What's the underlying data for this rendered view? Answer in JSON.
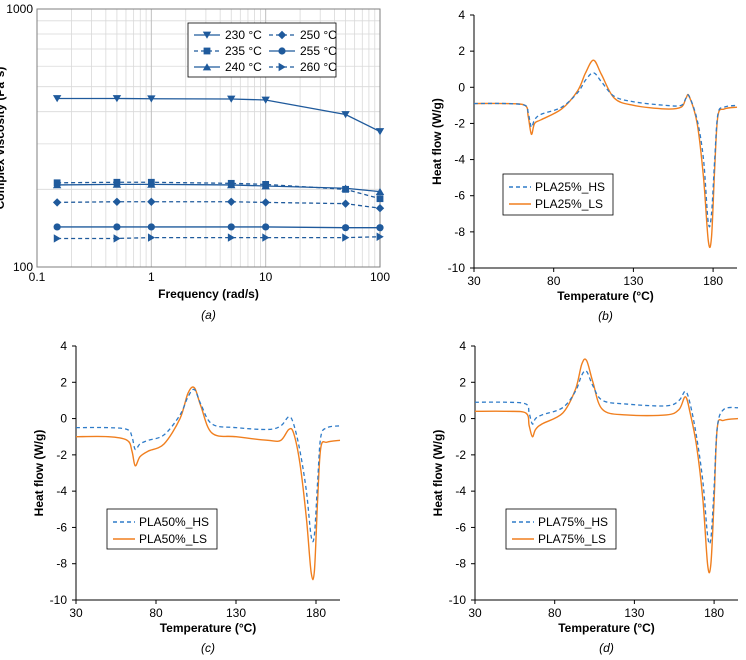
{
  "colors": {
    "viscosity": "#1f5a9c",
    "hs": "#2e7bc8",
    "ls": "#f07f1f",
    "axis": "#000000",
    "grid": "#d9d9d9"
  },
  "chart_data": [
    {
      "type": "line",
      "panel_label": "(a)",
      "xlabel": "Frequency (rad/s)",
      "ylabel": "Complex viscosity (Pa*s)",
      "xscale": "log",
      "yscale": "log",
      "xlim": [
        0.1,
        100
      ],
      "ylim": [
        100,
        1000
      ],
      "xticks": [
        0.1,
        1,
        10,
        100
      ],
      "xtick_labels": [
        "0.1",
        "1",
        "10",
        "100"
      ],
      "yticks": [
        100,
        1000
      ],
      "ytick_labels": [
        "100",
        "1000"
      ],
      "legend": "top-right, two columns",
      "series": [
        {
          "name": "230 °C",
          "marker": "triangle-down",
          "dash": "solid",
          "x": [
            0.15,
            0.5,
            1,
            5,
            10,
            50,
            100
          ],
          "y": [
            450,
            450,
            449,
            448,
            444,
            390,
            335
          ]
        },
        {
          "name": "235 °C",
          "marker": "square",
          "dash": "dashed",
          "x": [
            0.15,
            0.5,
            1,
            5,
            10,
            50,
            100
          ],
          "y": [
            212,
            213,
            213,
            211,
            209,
            200,
            184
          ]
        },
        {
          "name": "240 °C",
          "marker": "triangle-up",
          "dash": "solid",
          "x": [
            0.15,
            0.5,
            1,
            5,
            10,
            50,
            100
          ],
          "y": [
            208,
            209,
            209,
            208,
            206,
            202,
            196
          ]
        },
        {
          "name": "250 °C",
          "marker": "diamond",
          "dash": "dashed",
          "x": [
            0.15,
            0.5,
            1,
            5,
            10,
            50,
            100
          ],
          "y": [
            178,
            179,
            179,
            179,
            178,
            176,
            169
          ]
        },
        {
          "name": "255 °C",
          "marker": "circle",
          "dash": "solid",
          "x": [
            0.15,
            0.5,
            1,
            5,
            10,
            50,
            100
          ],
          "y": [
            143,
            143,
            143,
            143,
            143,
            142,
            142
          ]
        },
        {
          "name": "260 °C",
          "marker": "triangle-right",
          "dash": "dashed",
          "x": [
            0.15,
            0.5,
            1,
            5,
            10,
            50,
            100
          ],
          "y": [
            129,
            129,
            130,
            130,
            130,
            130,
            131
          ]
        }
      ]
    },
    {
      "type": "line",
      "panel_label": "(b)",
      "xlabel": "Temperature (°C)",
      "ylabel": "Heat flow (W/g)",
      "xlim": [
        30,
        195
      ],
      "ylim": [
        -10,
        4
      ],
      "xticks": [
        30,
        80,
        130,
        180
      ],
      "yticks": [
        -10,
        -8,
        -6,
        -4,
        -2,
        0,
        2,
        4
      ],
      "legend": "lower-left",
      "series": [
        {
          "name": "PLA25%_HS",
          "dash": "dashed",
          "x": [
            30,
            50,
            62,
            64,
            66,
            68,
            72,
            85,
            95,
            100,
            105,
            110,
            118,
            130,
            150,
            160,
            163,
            165,
            170,
            174,
            177,
            179,
            181,
            183,
            187,
            195
          ],
          "y": [
            -0.9,
            -0.9,
            -1.0,
            -1.4,
            -2.2,
            -1.8,
            -1.5,
            -1.1,
            -0.3,
            0.4,
            0.8,
            0.3,
            -0.5,
            -0.8,
            -1.0,
            -1.0,
            -0.6,
            -0.5,
            -1.8,
            -4.0,
            -7.5,
            -7.0,
            -4.0,
            -1.5,
            -1.1,
            -1.0
          ]
        },
        {
          "name": "PLA25%_LS",
          "dash": "solid",
          "x": [
            30,
            50,
            62,
            64,
            66,
            68,
            72,
            85,
            95,
            100,
            105,
            110,
            118,
            130,
            150,
            160,
            163,
            165,
            170,
            174,
            177,
            179,
            181,
            183,
            187,
            195
          ],
          "y": [
            -0.9,
            -0.9,
            -1.0,
            -1.6,
            -2.6,
            -2.0,
            -1.8,
            -1.2,
            -0.2,
            0.8,
            1.5,
            0.7,
            -0.6,
            -1.0,
            -1.2,
            -1.1,
            -0.6,
            -0.5,
            -2.0,
            -5.0,
            -8.5,
            -8.3,
            -4.5,
            -1.6,
            -1.2,
            -1.1
          ]
        }
      ]
    },
    {
      "type": "line",
      "panel_label": "(c)",
      "xlabel": "Temperature (°C)",
      "ylabel": "Heat flow (W/g)",
      "xlim": [
        30,
        195
      ],
      "ylim": [
        -10,
        4
      ],
      "xticks": [
        30,
        80,
        130,
        180
      ],
      "yticks": [
        -10,
        -8,
        -6,
        -4,
        -2,
        0,
        2,
        4
      ],
      "legend": "lower-left",
      "series": [
        {
          "name": "PLA50%_HS",
          "dash": "dashed",
          "x": [
            30,
            50,
            62,
            65,
            67,
            70,
            75,
            85,
            95,
            100,
            104,
            108,
            115,
            130,
            150,
            158,
            163,
            166,
            170,
            174,
            177,
            179,
            181,
            183,
            187,
            195
          ],
          "y": [
            -0.5,
            -0.5,
            -0.6,
            -1.0,
            -1.7,
            -1.4,
            -1.2,
            -0.9,
            0.2,
            1.2,
            1.6,
            0.8,
            -0.3,
            -0.5,
            -0.6,
            -0.4,
            0.1,
            -0.3,
            -1.8,
            -4.0,
            -6.5,
            -6.4,
            -3.5,
            -1.0,
            -0.5,
            -0.4
          ]
        },
        {
          "name": "PLA50%_LS",
          "dash": "solid",
          "x": [
            30,
            50,
            62,
            65,
            67,
            70,
            75,
            85,
            95,
            100,
            104,
            108,
            115,
            130,
            150,
            158,
            163,
            166,
            170,
            174,
            177,
            179,
            181,
            183,
            187,
            195
          ],
          "y": [
            -1.0,
            -1.0,
            -1.2,
            -1.8,
            -2.6,
            -2.1,
            -1.8,
            -1.4,
            0.0,
            1.4,
            1.7,
            0.7,
            -0.8,
            -1.0,
            -1.2,
            -1.2,
            -0.6,
            -0.8,
            -2.5,
            -5.5,
            -8.5,
            -8.4,
            -4.5,
            -1.6,
            -1.3,
            -1.2
          ]
        }
      ]
    },
    {
      "type": "line",
      "panel_label": "(d)",
      "xlabel": "Temperature (°C)",
      "ylabel": "Heat flow (W/g)",
      "xlim": [
        30,
        195
      ],
      "ylim": [
        -10,
        4
      ],
      "xticks": [
        30,
        80,
        130,
        180
      ],
      "yticks": [
        -10,
        -8,
        -6,
        -4,
        -2,
        0,
        2,
        4
      ],
      "legend": "lower-left",
      "series": [
        {
          "name": "PLA75%_HS",
          "dash": "dashed",
          "x": [
            30,
            50,
            62,
            64,
            66,
            68,
            72,
            85,
            93,
            97,
            100,
            104,
            110,
            125,
            150,
            158,
            162,
            165,
            169,
            173,
            176,
            178,
            180,
            182,
            186,
            195
          ],
          "y": [
            0.9,
            0.9,
            0.8,
            0.3,
            -0.3,
            0.0,
            0.2,
            0.6,
            1.5,
            2.4,
            2.6,
            1.8,
            1.0,
            0.8,
            0.7,
            1.0,
            1.5,
            0.8,
            -1.0,
            -3.5,
            -6.5,
            -6.6,
            -3.8,
            -0.5,
            0.5,
            0.6
          ]
        },
        {
          "name": "PLA75%_LS",
          "dash": "solid",
          "x": [
            30,
            50,
            62,
            64,
            66,
            68,
            72,
            85,
            93,
            97,
            100,
            104,
            110,
            125,
            150,
            158,
            162,
            165,
            169,
            173,
            176,
            178,
            180,
            182,
            186,
            195
          ],
          "y": [
            0.4,
            0.4,
            0.3,
            -0.4,
            -1.0,
            -0.6,
            -0.3,
            0.3,
            1.6,
            3.0,
            3.2,
            2.0,
            0.5,
            0.2,
            0.2,
            0.5,
            1.2,
            0.3,
            -1.5,
            -4.5,
            -8.1,
            -8.0,
            -4.5,
            -0.5,
            -0.1,
            0.0
          ]
        }
      ]
    }
  ]
}
